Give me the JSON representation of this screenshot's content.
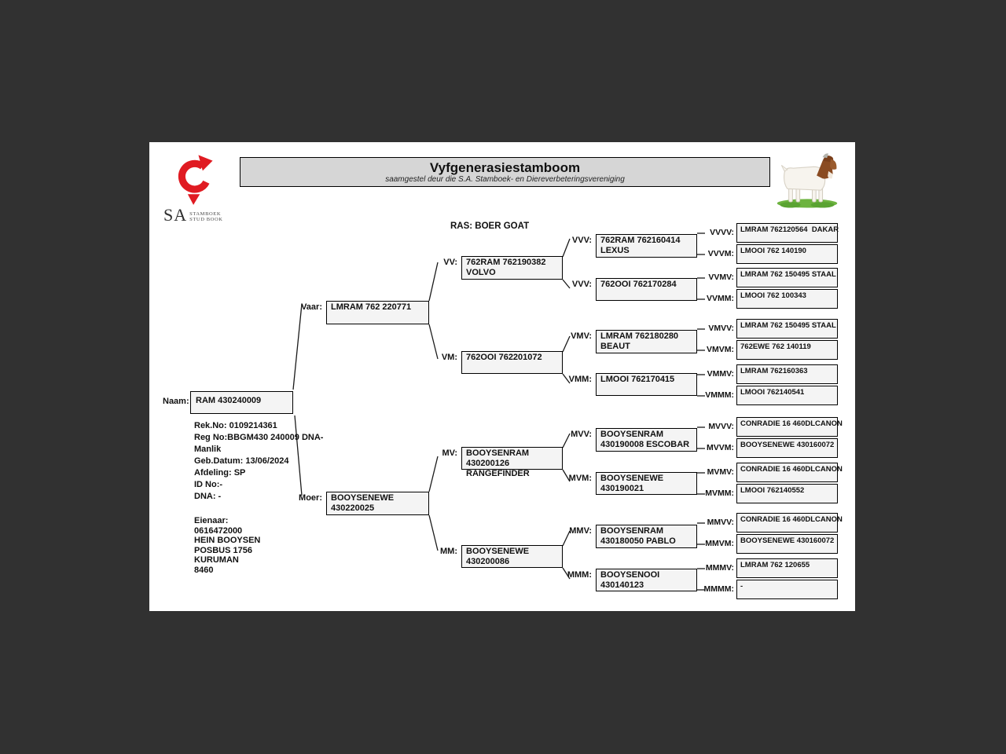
{
  "colors": {
    "background": "#313131",
    "page": "#ffffff",
    "titlebar_bg": "#d6d6d6",
    "box_fill": "#f4f4f4",
    "logo_red": "#e01b22",
    "grass_green": "#6db33f",
    "goat_brown": "#8a4b22"
  },
  "header": {
    "title": "Vyfgenerasiestamboom",
    "subtitle": "saamgestel deur die S.A. Stamboek- en Diereverbeteringsvereniging",
    "breed": "RAS: BOER GOAT",
    "logo": {
      "sa": "SA",
      "org_line1": "STAMBOEK",
      "org_line2": "STUD BOOK"
    }
  },
  "subject": {
    "label": "Naam:",
    "name": "RAM 430240009",
    "details": [
      "Rek.No: 0109214361",
      "Reg No:BBGM430 240009 DNA-",
      "Manlik",
      "Geb.Datum: 13/06/2024",
      "Afdeling: SP",
      "ID No:-",
      "DNA: -"
    ],
    "owner": [
      "Eienaar:",
      "0616472000",
      "HEIN BOOYSEN",
      "POSBUS 1756",
      "KURUMAN",
      "8460"
    ]
  },
  "pedigree": {
    "nodes": [
      {
        "id": "vaar",
        "label": "Vaar:",
        "lines": [
          "LMRAM 762 220771"
        ]
      },
      {
        "id": "moer",
        "label": "Moer:",
        "lines": [
          "BOOYSENEWE",
          "430220025"
        ]
      },
      {
        "id": "vv",
        "label": "VV:",
        "lines": [
          "762RAM 762190382",
          "VOLVO"
        ]
      },
      {
        "id": "vm",
        "label": "VM:",
        "lines": [
          "762OOI 762201072"
        ]
      },
      {
        "id": "mv",
        "label": "MV:",
        "lines": [
          "BOOYSENRAM",
          "430200126",
          "RANGEFINDER"
        ]
      },
      {
        "id": "mm",
        "label": "MM:",
        "lines": [
          "BOOYSENEWE",
          "430200086"
        ]
      },
      {
        "id": "vvv",
        "label": "VVV:",
        "lines": [
          "762RAM 762160414",
          "LEXUS"
        ]
      },
      {
        "id": "vvm",
        "label": "VVV:",
        "lines": [
          "762OOI 762170284"
        ]
      },
      {
        "id": "vmv",
        "label": "VMV:",
        "lines": [
          "LMRAM 762180280",
          "BEAUT"
        ]
      },
      {
        "id": "vmm",
        "label": "VMM:",
        "lines": [
          "LMOOI 762170415"
        ]
      },
      {
        "id": "mvv",
        "label": "MVV:",
        "lines": [
          "BOOYSENRAM",
          "430190008 ESCOBAR"
        ]
      },
      {
        "id": "mvm",
        "label": "MVM:",
        "lines": [
          "BOOYSENEWE",
          "430190021"
        ]
      },
      {
        "id": "mmv",
        "label": "MMV:",
        "lines": [
          "BOOYSENRAM",
          "430180050 PABLO"
        ]
      },
      {
        "id": "mmm",
        "label": "MMM:",
        "lines": [
          "BOOYSENOOI",
          "430140123"
        ]
      },
      {
        "id": "vvvv",
        "label": "VVVV:",
        "lines": [
          "LMRAM 762120564  DAKAR"
        ]
      },
      {
        "id": "vvvm",
        "label": "VVVM:",
        "lines": [
          "LMOOI 762 140190"
        ]
      },
      {
        "id": "vvmv",
        "label": "VVMV:",
        "lines": [
          "LMRAM 762 150495 STAAL"
        ]
      },
      {
        "id": "vvmm",
        "label": "VVMM:",
        "lines": [
          "LMOOI 762 100343"
        ]
      },
      {
        "id": "vmvv",
        "label": "VMVV:",
        "lines": [
          "LMRAM 762 150495 STAAL"
        ]
      },
      {
        "id": "vmvm",
        "label": "VMVM:",
        "lines": [
          "762EWE 762 140119"
        ]
      },
      {
        "id": "vmmv",
        "label": "VMMV:",
        "lines": [
          "LMRAM 762160363"
        ]
      },
      {
        "id": "vmmm",
        "label": "VMMM:",
        "lines": [
          "LMOOI 762140541"
        ]
      },
      {
        "id": "mvvv",
        "label": "MVVV:",
        "lines": [
          "CONRADIE 16 460DLCANON"
        ]
      },
      {
        "id": "mvvm",
        "label": "MVVM:",
        "lines": [
          "BOOYSENEWE 430160072"
        ]
      },
      {
        "id": "mvmv",
        "label": "MVMV:",
        "lines": [
          "CONRADIE 16 460DLCANON"
        ]
      },
      {
        "id": "mvmm",
        "label": "MVMM:",
        "lines": [
          "LMOOI 762140552"
        ]
      },
      {
        "id": "mmvv",
        "label": "MMVV:",
        "lines": [
          "CONRADIE 16 460DLCANON"
        ]
      },
      {
        "id": "mmvm",
        "label": "MMVM:",
        "lines": [
          "BOOYSENEWE 430160072"
        ]
      },
      {
        "id": "mmmv",
        "label": "MMMV:",
        "lines": [
          "LMRAM 762 120655"
        ]
      },
      {
        "id": "mmmm",
        "label": "MMMM:",
        "lines": [
          "-"
        ]
      }
    ]
  }
}
